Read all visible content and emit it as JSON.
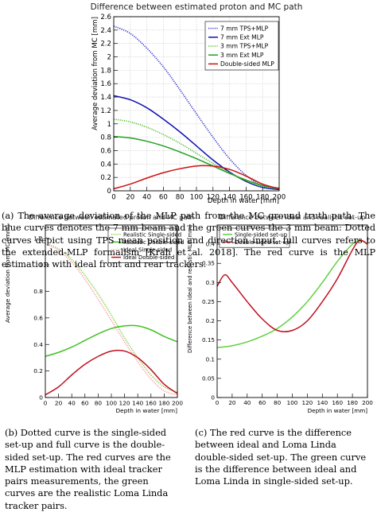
{
  "chart_data": [
    {
      "id": "a",
      "type": "line",
      "title": "Difference between estimated proton and MC path",
      "xlabel": "Depth in water [mm]",
      "ylabel": "Average deviation from MC [mm]",
      "xlim": [
        0,
        200
      ],
      "ylim": [
        0,
        2.6
      ],
      "xticks": [
        0,
        20,
        40,
        60,
        80,
        100,
        120,
        140,
        160,
        180,
        200
      ],
      "yticks": [
        0,
        0.2,
        0.4,
        0.6,
        0.8,
        1.0,
        1.2,
        1.4,
        1.6,
        1.8,
        2.0,
        2.2,
        2.4,
        2.6
      ],
      "ytick_labels": [
        "0",
        "0.2",
        "0.4",
        "0.6",
        "0.8",
        "1",
        "1.2",
        "1.4",
        "1.6",
        "1.8",
        "2",
        "2.2",
        "2.4",
        "2.6"
      ],
      "grid": true,
      "legend_position": "top-right",
      "series": [
        {
          "name": "7 mm TPS+MLP",
          "color": "#3030d0",
          "dash": "dotted",
          "x": [
            0,
            20,
            40,
            60,
            80,
            100,
            120,
            140,
            160,
            180,
            200
          ],
          "y": [
            2.46,
            2.35,
            2.13,
            1.85,
            1.51,
            1.15,
            0.8,
            0.48,
            0.23,
            0.07,
            0.02
          ]
        },
        {
          "name": "7 mm Ext MLP",
          "color": "#1010b0",
          "dash": "solid",
          "x": [
            0,
            20,
            40,
            60,
            80,
            100,
            120,
            140,
            160,
            180,
            200
          ],
          "y": [
            1.42,
            1.36,
            1.24,
            1.07,
            0.88,
            0.67,
            0.46,
            0.28,
            0.14,
            0.05,
            0.02
          ]
        },
        {
          "name": "3 mm TPS+MLP",
          "color": "#50c030",
          "dash": "dotted",
          "x": [
            0,
            20,
            40,
            60,
            80,
            100,
            120,
            140,
            160,
            180,
            200
          ],
          "y": [
            1.07,
            1.03,
            0.95,
            0.84,
            0.71,
            0.56,
            0.41,
            0.27,
            0.15,
            0.06,
            0.03
          ]
        },
        {
          "name": "3 mm Ext MLP",
          "color": "#20a020",
          "dash": "solid",
          "x": [
            0,
            20,
            40,
            60,
            80,
            100,
            120,
            140,
            160,
            180,
            200
          ],
          "y": [
            0.81,
            0.79,
            0.74,
            0.67,
            0.58,
            0.48,
            0.37,
            0.26,
            0.16,
            0.08,
            0.04
          ]
        },
        {
          "name": "Double-sided MLP",
          "color": "#cc1010",
          "dash": "solid",
          "x": [
            0,
            20,
            40,
            60,
            80,
            100,
            120,
            140,
            160,
            180,
            200
          ],
          "y": [
            0.03,
            0.1,
            0.19,
            0.27,
            0.33,
            0.37,
            0.37,
            0.32,
            0.22,
            0.1,
            0.03
          ]
        }
      ]
    },
    {
      "id": "b",
      "type": "line",
      "title": "Difference between estimated proton and MC path",
      "xlabel": "Depth in water [mm]",
      "ylabel": "Average deviation from MC [mm]",
      "xlim": [
        0,
        200
      ],
      "ylim": [
        0,
        1.3
      ],
      "xticks": [
        0,
        20,
        40,
        60,
        80,
        100,
        120,
        140,
        160,
        180,
        200
      ],
      "yticks": [
        0,
        0.2,
        0.4,
        0.6,
        0.8,
        1.0,
        1.2
      ],
      "ytick_labels": [
        "0",
        "0.2",
        "0.4",
        "0.6",
        "0.8",
        "1",
        "1.2"
      ],
      "grid": false,
      "legend_position": "top-right",
      "series": [
        {
          "name": "Realistic Single-sided",
          "color": "#80d040",
          "dash": "dotted",
          "x": [
            0,
            20,
            40,
            60,
            80,
            100,
            120,
            140,
            160,
            180,
            200
          ],
          "y": [
            1.16,
            1.12,
            1.04,
            0.92,
            0.78,
            0.62,
            0.45,
            0.3,
            0.17,
            0.08,
            0.04
          ]
        },
        {
          "name": "Realistic Double-sided",
          "color": "#40c020",
          "dash": "solid",
          "x": [
            0,
            20,
            40,
            60,
            80,
            100,
            120,
            140,
            160,
            180,
            200
          ],
          "y": [
            0.31,
            0.34,
            0.38,
            0.43,
            0.48,
            0.52,
            0.54,
            0.54,
            0.51,
            0.46,
            0.42
          ]
        },
        {
          "name": "Ideal Single-sided",
          "color": "#ff9aa8",
          "dash": "dotted",
          "x": [
            0,
            20,
            40,
            60,
            80,
            100,
            120,
            140,
            160,
            180,
            200
          ],
          "y": [
            1.16,
            1.11,
            1.02,
            0.89,
            0.74,
            0.58,
            0.42,
            0.27,
            0.14,
            0.05,
            0.02
          ]
        },
        {
          "name": "Ideal Double-sided",
          "color": "#c01020",
          "dash": "solid",
          "x": [
            0,
            20,
            40,
            60,
            80,
            100,
            120,
            140,
            160,
            180,
            200
          ],
          "y": [
            0.02,
            0.08,
            0.17,
            0.25,
            0.31,
            0.35,
            0.35,
            0.3,
            0.21,
            0.1,
            0.03
          ]
        }
      ]
    },
    {
      "id": "c",
      "type": "line",
      "title": "Difference between ideal and realistic set-up",
      "xlabel": "Depth in water [mm]",
      "ylabel": "Difference between ideal and realistic MLP [mm]",
      "xlim": [
        0,
        200
      ],
      "ylim": [
        0,
        0.45
      ],
      "xticks": [
        0,
        20,
        40,
        60,
        80,
        100,
        120,
        140,
        160,
        180,
        200
      ],
      "yticks": [
        0,
        0.05,
        0.1,
        0.15,
        0.2,
        0.25,
        0.3,
        0.35,
        0.4
      ],
      "ytick_labels": [
        "0",
        "0.05",
        "0.1",
        "0.15",
        "0.2",
        "0.25",
        "0.3",
        "0.35",
        "0.4"
      ],
      "grid": false,
      "legend_position": "top-left",
      "series": [
        {
          "name": "Single-sided set-up",
          "color": "#60d040",
          "dash": "solid",
          "x": [
            0,
            20,
            40,
            60,
            80,
            100,
            120,
            140,
            160,
            180,
            190,
            200
          ],
          "y": [
            0.13,
            0.135,
            0.145,
            0.16,
            0.18,
            0.21,
            0.25,
            0.3,
            0.355,
            0.4,
            0.41,
            0.4
          ]
        },
        {
          "name": "Double-sided set-up",
          "color": "#c01020",
          "dash": "solid",
          "x": [
            0,
            10,
            20,
            40,
            60,
            80,
            100,
            120,
            140,
            160,
            180,
            190,
            200
          ],
          "y": [
            0.29,
            0.32,
            0.3,
            0.25,
            0.205,
            0.175,
            0.175,
            0.2,
            0.25,
            0.31,
            0.385,
            0.41,
            0.4
          ]
        }
      ]
    }
  ],
  "captions": {
    "a": "(a) The average deviation of the MLP path from the MC ground truth path. The blue curves denotes the 7 mm beam and the green curves the 3 mm beam: Dotted curves depict using TPS mean position and direction input, full curves refers to the extended-MLP formalism [Krah et al. 2018]. The red curve is the MLP estimation with ideal front and rear trackers.",
    "b": "(b) Dotted curve is the single-sided set-up and full curve is the double-sided set-up. The red curves are the MLP estimation with ideal tracker pairs measurements, the green curves are the realistic Loma Linda tracker pairs.",
    "c": "(c) The red curve is the difference between ideal and Loma Linda double-sided set-up. The green curve is the difference between ideal and Loma Linda in single-sided set-up."
  },
  "colors": {
    "frame": "#000000",
    "grid": "#c8c8c8",
    "legend_border": "#000000"
  }
}
